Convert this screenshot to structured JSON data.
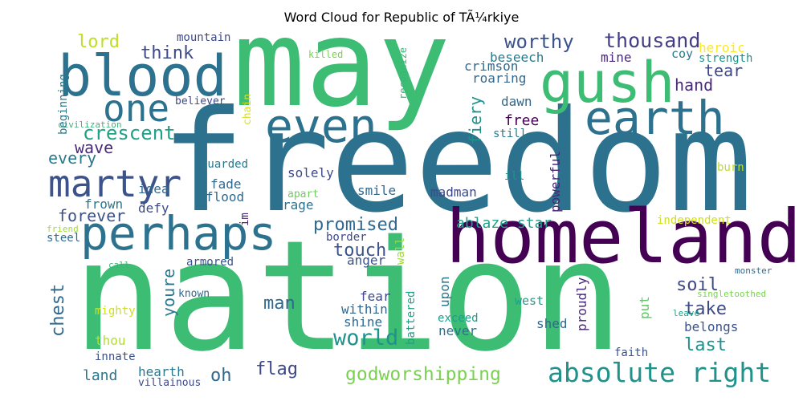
{
  "title": "Word Cloud for Republic of TÃ¼rkiye",
  "words": [
    {
      "text": "may",
      "color": "#3dbc74"
    },
    {
      "text": "freedom",
      "color": "#2c728e"
    },
    {
      "text": "nation",
      "color": "#3dbc74"
    },
    {
      "text": "homeland",
      "color": "#440154"
    },
    {
      "text": "blood",
      "color": "#2c728e"
    },
    {
      "text": "gush",
      "color": "#3dbc74"
    },
    {
      "text": "perhaps",
      "color": "#2c728e"
    },
    {
      "text": "even",
      "color": "#2c728e"
    },
    {
      "text": "earth",
      "color": "#2c728e"
    },
    {
      "text": "one",
      "color": "#2c728e"
    },
    {
      "text": "martyr",
      "color": "#3b528b"
    },
    {
      "text": "absolute right",
      "color": "#21918c"
    },
    {
      "text": "godworshipping",
      "color": "#7ad151"
    },
    {
      "text": "world",
      "color": "#21918c"
    },
    {
      "text": "thousand",
      "color": "#433e85"
    },
    {
      "text": "worthy",
      "color": "#3b528b"
    },
    {
      "text": "crescent",
      "color": "#1fa188"
    },
    {
      "text": "promised",
      "color": "#31688e"
    },
    {
      "text": "forever",
      "color": "#3b528b"
    },
    {
      "text": "lord",
      "color": "#bddf26"
    },
    {
      "text": "think",
      "color": "#3e4989"
    },
    {
      "text": "wave",
      "color": "#482878"
    },
    {
      "text": "every",
      "color": "#2a788e"
    },
    {
      "text": "touch",
      "color": "#3b528b"
    },
    {
      "text": "soil",
      "color": "#3e4989"
    },
    {
      "text": "take",
      "color": "#3e4989"
    },
    {
      "text": "last",
      "color": "#21918c"
    },
    {
      "text": "man",
      "color": "#31688e"
    },
    {
      "text": "flag",
      "color": "#3e4989"
    },
    {
      "text": "land",
      "color": "#2a788e"
    },
    {
      "text": "oh",
      "color": "#31688e"
    },
    {
      "text": "chest",
      "color": "#31688e"
    },
    {
      "text": "youre",
      "color": "#2a788e"
    },
    {
      "text": "hand",
      "color": "#482878"
    },
    {
      "text": "tear",
      "color": "#3e4989"
    },
    {
      "text": "roaring",
      "color": "#31688e"
    },
    {
      "text": "crimson",
      "color": "#31688e"
    },
    {
      "text": "beseech",
      "color": "#2a788e"
    },
    {
      "text": "mine",
      "color": "#482878"
    },
    {
      "text": "free",
      "color": "#440154"
    },
    {
      "text": "fiery",
      "color": "#21918c"
    },
    {
      "text": "ablaze star",
      "color": "#1f9e89"
    },
    {
      "text": "heroic",
      "color": "#fde725"
    },
    {
      "text": "coy",
      "color": "#2a788e"
    },
    {
      "text": "strength",
      "color": "#21918c"
    },
    {
      "text": "smile",
      "color": "#31688e"
    },
    {
      "text": "madman",
      "color": "#3e4989"
    },
    {
      "text": "solely",
      "color": "#3e4989"
    },
    {
      "text": "rage",
      "color": "#2c728e"
    },
    {
      "text": "flood",
      "color": "#31688e"
    },
    {
      "text": "fade",
      "color": "#31688e"
    },
    {
      "text": "frown",
      "color": "#2a788e"
    },
    {
      "text": "defy",
      "color": "#3e4989"
    },
    {
      "text": "idea",
      "color": "#31688e"
    },
    {
      "text": "powerful",
      "color": "#482878"
    },
    {
      "text": "within",
      "color": "#31688e"
    },
    {
      "text": "shine",
      "color": "#31688e"
    },
    {
      "text": "fear",
      "color": "#3e4989"
    },
    {
      "text": "shed",
      "color": "#31688e"
    },
    {
      "text": "never",
      "color": "#2c728e"
    },
    {
      "text": "exceed",
      "color": "#1f9e89"
    },
    {
      "text": "belongs",
      "color": "#3b528b"
    },
    {
      "text": "proudly",
      "color": "#482878"
    },
    {
      "text": "put",
      "color": "#5ec962"
    },
    {
      "text": "upon",
      "color": "#2a788e"
    },
    {
      "text": "battered",
      "color": "#1f9e89"
    },
    {
      "text": "west",
      "color": "#1fa188"
    },
    {
      "text": "anger",
      "color": "#3b528b"
    },
    {
      "text": "border",
      "color": "#3e4989"
    },
    {
      "text": "wall",
      "color": "#a0da39"
    },
    {
      "text": "dawn",
      "color": "#31688e"
    },
    {
      "text": "still",
      "color": "#2a788e"
    },
    {
      "text": "ill",
      "color": "#21918c"
    },
    {
      "text": "burn",
      "color": "#bddf26"
    },
    {
      "text": "independent",
      "color": "#d0e11c"
    },
    {
      "text": "monster",
      "color": "#31688e"
    },
    {
      "text": "singletoothed",
      "color": "#7ad151"
    },
    {
      "text": "leave",
      "color": "#1fa188"
    },
    {
      "text": "faith",
      "color": "#3b528b"
    },
    {
      "text": "thou",
      "color": "#b5de2b"
    },
    {
      "text": "mighty",
      "color": "#d0e11c"
    },
    {
      "text": "innate",
      "color": "#3b528b"
    },
    {
      "text": "hearth",
      "color": "#2a788e"
    },
    {
      "text": "villainous",
      "color": "#3e4989"
    },
    {
      "text": "known",
      "color": "#31688e"
    },
    {
      "text": "armored",
      "color": "#3b528b"
    },
    {
      "text": "call",
      "color": "#35b779"
    },
    {
      "text": "steel",
      "color": "#31688e"
    },
    {
      "text": "friend",
      "color": "#a0da39"
    },
    {
      "text": "im",
      "color": "#482878"
    },
    {
      "text": "apart",
      "color": "#6ece58"
    },
    {
      "text": "guarded",
      "color": "#2a788e"
    },
    {
      "text": "chain",
      "color": "#d8e219"
    },
    {
      "text": "believer",
      "color": "#3e4989"
    },
    {
      "text": "civilization",
      "color": "#35b779"
    },
    {
      "text": "beginning",
      "color": "#2a788e"
    },
    {
      "text": "mountain",
      "color": "#3e4989"
    },
    {
      "text": "killed",
      "color": "#7ad151"
    },
    {
      "text": "recognize",
      "color": "#35b779"
    }
  ]
}
